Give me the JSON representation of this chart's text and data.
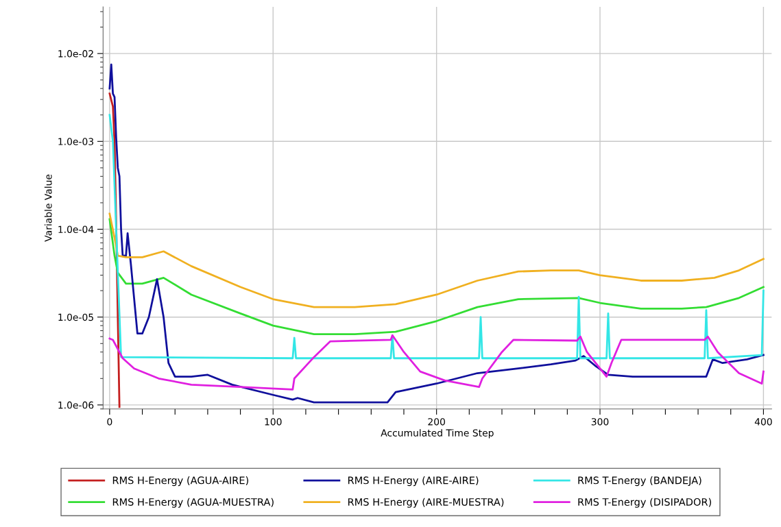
{
  "chart_data": {
    "type": "line",
    "xlabel": "Accumulated Time Step",
    "ylabel": "Variable Value",
    "log": "y",
    "grid": true,
    "legend": "bottom",
    "marker": "none",
    "line_style": "solid",
    "xlim": [
      -4,
      405
    ],
    "xticks": [
      0,
      {
        "value": 20,
        "label": null
      },
      {
        "value": 40,
        "label": null
      },
      {
        "value": 60,
        "label": null
      },
      {
        "value": 80,
        "label": null
      },
      100,
      {
        "value": 120,
        "label": null
      },
      {
        "value": 140,
        "label": null
      },
      {
        "value": 160,
        "label": null
      },
      {
        "value": 180,
        "label": null
      },
      200,
      {
        "value": 220,
        "label": null
      },
      {
        "value": 240,
        "label": null
      },
      {
        "value": 260,
        "label": null
      },
      {
        "value": 280,
        "label": null
      },
      300,
      {
        "value": 320,
        "label": null
      },
      {
        "value": 340,
        "label": null
      },
      {
        "value": 360,
        "label": null
      },
      {
        "value": 380,
        "label": null
      },
      400
    ],
    "ylim": [
      9e-07,
      0.034
    ],
    "yticks": [
      {
        "value": 1e-06,
        "label": "1.0e-06"
      },
      {
        "value": 1e-05,
        "label": "1.0e-05"
      },
      {
        "value": 0.0001,
        "label": "1.0e-04"
      },
      {
        "value": 0.001,
        "label": "1.0e-03"
      },
      {
        "value": 0.01,
        "label": "1.0e-02"
      }
    ],
    "series": [
      {
        "name": "RMS H-Energy (AGUA-AIRE)",
        "color": "#c41e1e",
        "x": [
          0,
          2,
          3,
          4,
          5,
          6
        ],
        "values": [
          0.0035,
          0.0025,
          0.001,
          0.00012,
          1e-05,
          9.5e-07
        ]
      },
      {
        "name": "RMS H-Energy (AGUA-MUESTRA)",
        "color": "#33dd33",
        "x": [
          0,
          3,
          5,
          10,
          20,
          33,
          50,
          80,
          100,
          125,
          150,
          175,
          200,
          225,
          250,
          287,
          300,
          325,
          350,
          365,
          385,
          400
        ],
        "values": [
          0.00013,
          5e-05,
          3.2e-05,
          2.4e-05,
          2.4e-05,
          2.8e-05,
          1.8e-05,
          1.1e-05,
          8e-06,
          6.4e-06,
          6.4e-06,
          6.8e-06,
          9e-06,
          1.3e-05,
          1.6e-05,
          1.65e-05,
          1.45e-05,
          1.25e-05,
          1.25e-05,
          1.3e-05,
          1.65e-05,
          2.2e-05
        ]
      },
      {
        "name": "RMS H-Energy (AIRE-AIRE)",
        "color": "#10109c",
        "x": [
          0,
          1,
          2,
          3,
          4,
          5,
          6,
          7,
          8,
          10,
          11,
          13,
          17,
          20,
          24,
          29,
          33,
          36,
          40,
          50,
          60,
          75,
          100,
          112,
          115,
          125,
          170,
          175,
          200,
          225,
          250,
          270,
          285,
          290,
          297,
          305,
          320,
          365,
          369,
          375,
          390,
          400
        ],
        "values": [
          0.004,
          0.0075,
          0.0035,
          0.0032,
          0.0011,
          0.0005,
          0.0004,
          0.0001,
          5e-05,
          5e-05,
          9e-05,
          4e-05,
          6.5e-06,
          6.5e-06,
          1e-05,
          2.7e-05,
          1e-05,
          3e-06,
          2.1e-06,
          2.1e-06,
          2.2e-06,
          1.7e-06,
          1.3e-06,
          1.15e-06,
          1.2e-06,
          1.07e-06,
          1.07e-06,
          1.4e-06,
          1.75e-06,
          2.3e-06,
          2.6e-06,
          2.9e-06,
          3.2e-06,
          3.6e-06,
          2.8e-06,
          2.2e-06,
          2.1e-06,
          2.1e-06,
          3.3e-06,
          3e-06,
          3.3e-06,
          3.7e-06
        ]
      },
      {
        "name": "RMS H-Energy (AIRE-MUESTRA)",
        "color": "#f0b020",
        "x": [
          0,
          3,
          5,
          10,
          20,
          33,
          50,
          80,
          100,
          125,
          150,
          175,
          200,
          225,
          250,
          270,
          287,
          300,
          325,
          350,
          370,
          385,
          400
        ],
        "values": [
          0.00015,
          8e-05,
          5e-05,
          4.8e-05,
          4.8e-05,
          5.6e-05,
          3.8e-05,
          2.2e-05,
          1.6e-05,
          1.3e-05,
          1.3e-05,
          1.4e-05,
          1.8e-05,
          2.6e-05,
          3.3e-05,
          3.4e-05,
          3.4e-05,
          3e-05,
          2.6e-05,
          2.6e-05,
          2.8e-05,
          3.4e-05,
          4.6e-05
        ]
      },
      {
        "name": "RMS T-Energy (BANDEJA)",
        "color": "#33e6e6",
        "x": [
          0,
          2,
          4,
          7,
          112,
          113,
          114,
          172,
          173,
          174,
          226,
          227,
          228,
          286,
          287,
          288,
          304,
          305,
          306,
          364,
          365,
          366,
          399,
          400
        ],
        "values": [
          0.002,
          0.001,
          0.0001,
          3.5e-06,
          3.4e-06,
          5.8e-06,
          3.4e-06,
          3.4e-06,
          6.2e-06,
          3.4e-06,
          3.4e-06,
          1e-05,
          3.4e-06,
          3.4e-06,
          1.7e-05,
          3.4e-06,
          3.4e-06,
          1.1e-05,
          3.4e-06,
          3.4e-06,
          1.2e-05,
          3.4e-06,
          3.7e-06,
          2e-05
        ]
      },
      {
        "name": "RMS T-Energy (DISIPADOR)",
        "color": "#e020e0",
        "x": [
          0,
          2,
          8,
          15,
          30,
          50,
          80,
          112,
          113,
          125,
          135,
          172,
          173,
          180,
          190,
          205,
          226,
          228,
          240,
          247,
          286,
          288,
          292,
          300,
          304,
          307,
          313,
          364,
          366,
          372,
          385,
          399,
          400
        ],
        "values": [
          5.7e-06,
          5.5e-06,
          3.4e-06,
          2.6e-06,
          2e-06,
          1.7e-06,
          1.6e-06,
          1.5e-06,
          2e-06,
          3.5e-06,
          5.3e-06,
          5.5e-06,
          6.2e-06,
          4e-06,
          2.4e-06,
          1.9e-06,
          1.6e-06,
          2e-06,
          4e-06,
          5.5e-06,
          5.4e-06,
          6e-06,
          4e-06,
          2.6e-06,
          2.1e-06,
          3e-06,
          5.5e-06,
          5.5e-06,
          6e-06,
          4e-06,
          2.3e-06,
          1.75e-06,
          2.4e-06
        ]
      }
    ]
  }
}
